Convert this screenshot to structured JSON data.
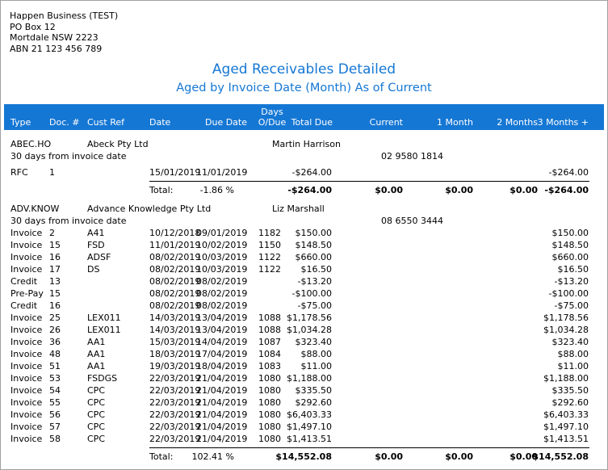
{
  "company": {
    "name": "Happen Business (TEST)",
    "address1": "PO Box 12",
    "address2": "Mortdale NSW 2223",
    "abn": "ABN 21 123 456 789"
  },
  "report": {
    "title": "Aged Receivables Detailed",
    "subtitle": "Aged by Invoice Date (Month) As of Current"
  },
  "columns": {
    "type": "Type",
    "doc": "Doc. #",
    "cust_ref": "Cust Ref",
    "date": "Date",
    "due_date": "Due Date",
    "days_overdue_1": "Days",
    "days_overdue_2": "O/Due",
    "total_due": "Total Due",
    "current": "Current",
    "one_month": "1 Month",
    "two_months": "2 Months",
    "three_months": "3 Months +"
  },
  "customers": [
    {
      "code": "ABEC.HO",
      "name": "Abeck Pty Ltd",
      "contact": "Martin Harrison",
      "terms": "30 days from invoice date",
      "phone": "02 9580 1814",
      "rows": [
        {
          "type": "RFC",
          "doc": "1",
          "ref": "",
          "date": "15/01/2019",
          "due": "11/01/2019",
          "days": "",
          "total": "-$264.00",
          "m3": "-$264.00"
        }
      ],
      "totals": {
        "label": "Total:",
        "pct": "-1.86 %",
        "total": "-$264.00",
        "current": "$0.00",
        "m1": "$0.00",
        "m2": "$0.00",
        "m3": "-$264.00"
      }
    },
    {
      "code": "ADV.KNOW",
      "name": "Advance Knowledge Pty Ltd",
      "contact": "Liz Marshall",
      "terms": "30 days from invoice date",
      "phone": "08 6550 3444",
      "rows": [
        {
          "type": "Invoice",
          "doc": "2",
          "ref": "A41",
          "date": "10/12/2018",
          "due": "09/01/2019",
          "days": "1182",
          "total": "$150.00",
          "m3": "$150.00"
        },
        {
          "type": "Invoice",
          "doc": "15",
          "ref": "FSD",
          "date": "11/01/2019",
          "due": "10/02/2019",
          "days": "1150",
          "total": "$148.50",
          "m3": "$148.50"
        },
        {
          "type": "Invoice",
          "doc": "16",
          "ref": "ADSF",
          "date": "08/02/2019",
          "due": "10/03/2019",
          "days": "1122",
          "total": "$660.00",
          "m3": "$660.00"
        },
        {
          "type": "Invoice",
          "doc": "17",
          "ref": "DS",
          "date": "08/02/2019",
          "due": "10/03/2019",
          "days": "1122",
          "total": "$16.50",
          "m3": "$16.50"
        },
        {
          "type": "Credit",
          "doc": "13",
          "ref": "",
          "date": "08/02/2019",
          "due": "08/02/2019",
          "days": "",
          "total": "-$13.20",
          "m3": "-$13.20"
        },
        {
          "type": "Pre-Pay",
          "doc": "15",
          "ref": "",
          "date": "08/02/2019",
          "due": "08/02/2019",
          "days": "",
          "total": "-$100.00",
          "m3": "-$100.00"
        },
        {
          "type": "Credit",
          "doc": "16",
          "ref": "",
          "date": "08/02/2019",
          "due": "08/02/2019",
          "days": "",
          "total": "-$75.00",
          "m3": "-$75.00"
        },
        {
          "type": "Invoice",
          "doc": "25",
          "ref": "LEX011",
          "date": "14/03/2019",
          "due": "13/04/2019",
          "days": "1088",
          "total": "$1,178.56",
          "m3": "$1,178.56"
        },
        {
          "type": "Invoice",
          "doc": "26",
          "ref": "LEX011",
          "date": "14/03/2019",
          "due": "13/04/2019",
          "days": "1088",
          "total": "$1,034.28",
          "m3": "$1,034.28"
        },
        {
          "type": "Invoice",
          "doc": "36",
          "ref": "AA1",
          "date": "15/03/2019",
          "due": "14/04/2019",
          "days": "1087",
          "total": "$323.40",
          "m3": "$323.40"
        },
        {
          "type": "Invoice",
          "doc": "48",
          "ref": "AA1",
          "date": "18/03/2019",
          "due": "17/04/2019",
          "days": "1084",
          "total": "$88.00",
          "m3": "$88.00"
        },
        {
          "type": "Invoice",
          "doc": "51",
          "ref": "AA1",
          "date": "19/03/2019",
          "due": "18/04/2019",
          "days": "1083",
          "total": "$11.00",
          "m3": "$11.00"
        },
        {
          "type": "Invoice",
          "doc": "53",
          "ref": "FSDGS",
          "date": "22/03/2019",
          "due": "21/04/2019",
          "days": "1080",
          "total": "$1,188.00",
          "m3": "$1,188.00"
        },
        {
          "type": "Invoice",
          "doc": "54",
          "ref": "CPC",
          "date": "22/03/2019",
          "due": "21/04/2019",
          "days": "1080",
          "total": "$335.50",
          "m3": "$335.50"
        },
        {
          "type": "Invoice",
          "doc": "55",
          "ref": "CPC",
          "date": "22/03/2019",
          "due": "21/04/2019",
          "days": "1080",
          "total": "$292.60",
          "m3": "$292.60"
        },
        {
          "type": "Invoice",
          "doc": "56",
          "ref": "CPC",
          "date": "22/03/2019",
          "due": "21/04/2019",
          "days": "1080",
          "total": "$6,403.33",
          "m3": "$6,403.33"
        },
        {
          "type": "Invoice",
          "doc": "57",
          "ref": "CPC",
          "date": "22/03/2019",
          "due": "21/04/2019",
          "days": "1080",
          "total": "$1,497.10",
          "m3": "$1,497.10"
        },
        {
          "type": "Invoice",
          "doc": "58",
          "ref": "CPC",
          "date": "22/03/2019",
          "due": "21/04/2019",
          "days": "1080",
          "total": "$1,413.51",
          "m3": "$1,413.51"
        }
      ],
      "totals": {
        "label": "Total:",
        "pct": "102.41 %",
        "total": "$14,552.08",
        "current": "$0.00",
        "m1": "$0.00",
        "m2": "$0.00",
        "m3": "$14,552.08"
      }
    }
  ]
}
